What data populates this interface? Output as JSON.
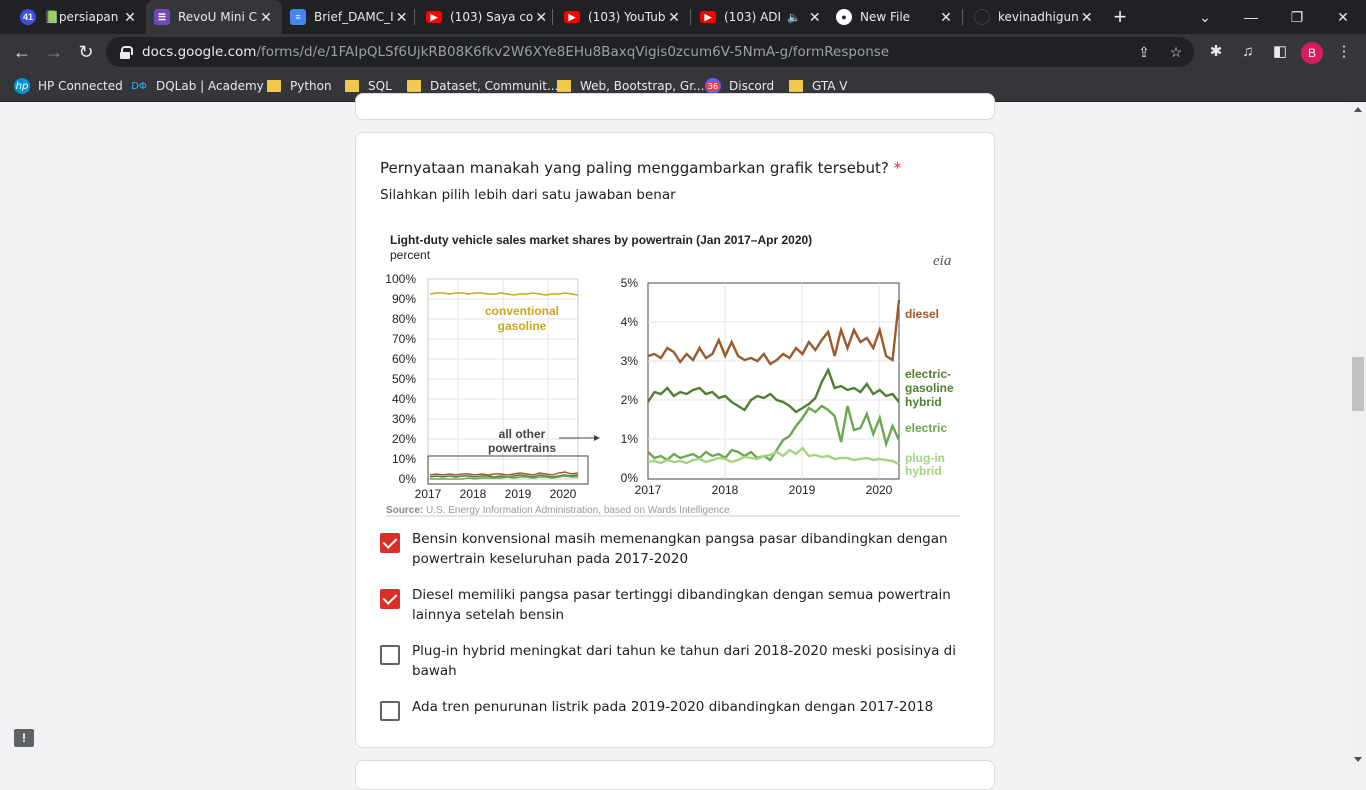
{
  "browser": {
    "tabs": [
      {
        "title": "📗persiapan",
        "favicon": "chrome-app-icon",
        "favicon_badge": "41",
        "favicon_color": "#3c4fe0"
      },
      {
        "title": "RevoU Mini C",
        "favicon": "forms-icon",
        "favicon_color": "#7248b9"
      },
      {
        "title": "Brief_DAMC_I",
        "favicon": "docs-icon",
        "favicon_color": "#4285f4"
      },
      {
        "title": "(103) Saya co",
        "favicon": "youtube-icon",
        "favicon_color": "#ff0000"
      },
      {
        "title": "(103) YouTub",
        "favicon": "youtube-icon",
        "favicon_color": "#ff0000"
      },
      {
        "title": "(103) ADI",
        "favicon": "youtube-icon",
        "favicon_color": "#ff0000",
        "audio": "🔈"
      },
      {
        "title": "New File",
        "favicon": "github-icon",
        "favicon_color": "#ffffff"
      },
      {
        "title": "kevinadhigun",
        "favicon": "github-icon",
        "favicon_color": "#202124"
      }
    ],
    "url_host": "docs.google.com",
    "url_path": "/forms/d/e/1FAIpQLSf6UjkRB08K6fkv2W6XYe8EHu8BaxqVigis0zcum6V-5NmA-g/formResponse",
    "profile_initial": "B",
    "bookmarks": [
      {
        "label": "HP Connected",
        "icon": "hp-icon"
      },
      {
        "label": "DQLab | Academy",
        "icon": "dqlab-icon"
      },
      {
        "label": "Python",
        "icon": "folder-icon"
      },
      {
        "label": "SQL",
        "icon": "folder-icon"
      },
      {
        "label": "Dataset, Communit...",
        "icon": "folder-icon"
      },
      {
        "label": "Web, Bootstrap, Gr...",
        "icon": "folder-icon"
      },
      {
        "label": "Discord",
        "icon": "discord-icon",
        "badge": "36"
      },
      {
        "label": "GTA V",
        "icon": "folder-icon"
      }
    ]
  },
  "question": {
    "title": "Pernyataan manakah yang paling menggambarkan grafik tersebut?",
    "required_mark": "*",
    "subtitle": "Silahkan pilih lebih dari satu jawaban benar",
    "options": [
      {
        "label": "Bensin konvensional masih memenangkan pangsa pasar dibandingkan dengan powertrain keseluruhan pada 2017-2020",
        "checked": true
      },
      {
        "label": "Diesel memiliki pangsa pasar tertinggi dibandingkan dengan semua powertrain lainnya setelah bensin",
        "checked": true
      },
      {
        "label": "Plug-in hybrid meningkat dari tahun ke tahun dari 2018-2020 meski posisinya di bawah",
        "checked": false
      },
      {
        "label": "Ada tren penurunan listrik pada 2019-2020 dibandingkan dengan 2017-2018",
        "checked": false
      }
    ]
  },
  "chart_image": {
    "title": "Light-duty vehicle sales market shares by powertrain (Jan 2017–Apr 2020)",
    "unit": "percent",
    "logo": "eia",
    "source_label": "Source:",
    "source_text": "U.S. Energy Information Administration, based on Wards Intelligence",
    "left_y_ticks": [
      "100%",
      "90%",
      "80%",
      "70%",
      "60%",
      "50%",
      "40%",
      "30%",
      "20%",
      "10%",
      "0%"
    ],
    "right_y_ticks": [
      "5%",
      "4%",
      "3%",
      "2%",
      "1%",
      "0%"
    ],
    "x_ticks": [
      "2017",
      "2018",
      "2019",
      "2020"
    ],
    "label_gasoline_1": "conventional",
    "label_gasoline_2": "gasoline",
    "label_other_1": "all other",
    "label_other_2": "powertrains",
    "label_diesel": "diesel",
    "label_hybrid_1": "electric-",
    "label_hybrid_2": "gasoline",
    "label_hybrid_3": "hybrid",
    "label_electric": "electric",
    "label_plugin_1": "plug-in",
    "label_plugin_2": "hybrid",
    "colors": {
      "gasoline": "#c9a520",
      "diesel": "#9c5a2b",
      "hybrid": "#4e7f33",
      "electric": "#6aa84f",
      "plugin": "#a3d47f"
    }
  }
}
